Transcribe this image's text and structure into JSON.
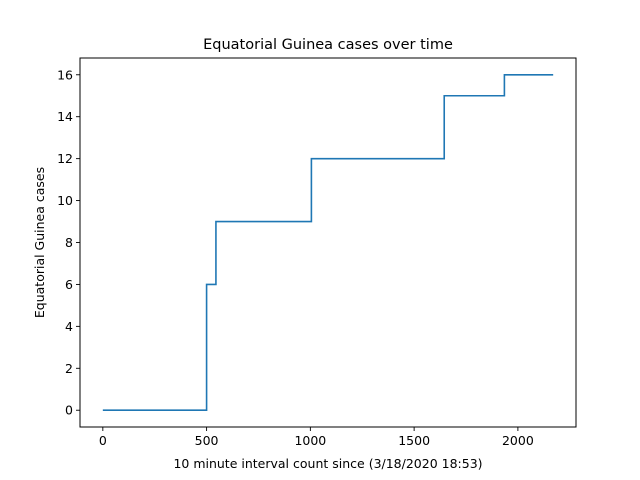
{
  "chart_data": {
    "type": "line",
    "title": "Equatorial Guinea cases over time",
    "xlabel": "10 minute interval count since (3/18/2020 18:53)",
    "ylabel": "Equatorial Guinea cases",
    "xlim": [
      -110,
      2280
    ],
    "ylim": [
      -0.8,
      16.8
    ],
    "x_ticks": [
      0,
      500,
      1000,
      1500,
      2000
    ],
    "y_ticks": [
      0,
      2,
      4,
      6,
      8,
      10,
      12,
      14,
      16
    ],
    "grid": false,
    "line_color": "#1f77b4",
    "series": [
      {
        "x": [
          0,
          500,
          500,
          545,
          545,
          1005,
          1005,
          1645,
          1645,
          1935,
          1935,
          2170
        ],
        "y": [
          0,
          0,
          6,
          6,
          9,
          9,
          12,
          12,
          15,
          15,
          16,
          16
        ]
      }
    ]
  }
}
